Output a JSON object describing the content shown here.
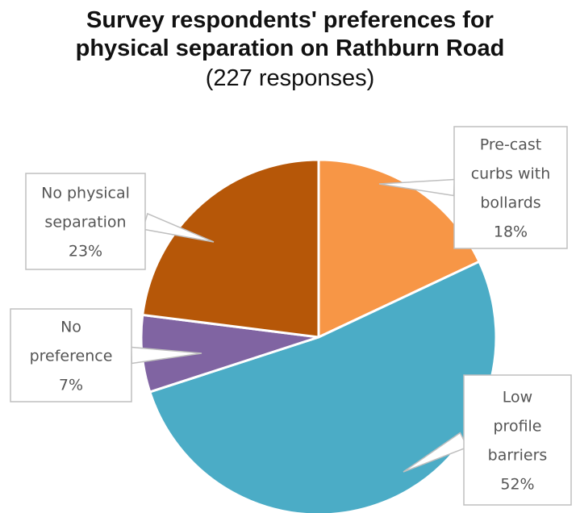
{
  "chart_data": {
    "type": "pie",
    "title_lines": [
      "Survey respondents' preferences for",
      "physical separation on Rathburn Road"
    ],
    "subtitle": "(227 responses)",
    "slices": [
      {
        "label_lines": [
          "Pre-cast",
          "curbs with",
          "bollards"
        ],
        "label": "Pre-cast curbs with bollards",
        "percent_text": "18%",
        "value": 18,
        "color": "#F79646"
      },
      {
        "label_lines": [
          "Low",
          "profile",
          "barriers"
        ],
        "label": "Low profile barriers",
        "percent_text": "52%",
        "value": 52,
        "color": "#4BACC6"
      },
      {
        "label_lines": [
          "No",
          "preference"
        ],
        "label": "No preference",
        "percent_text": "7%",
        "value": 7,
        "color": "#8064A2"
      },
      {
        "label_lines": [
          "No physical",
          "separation"
        ],
        "label": "No physical separation",
        "percent_text": "23%",
        "value": 23,
        "color": "#B65708"
      }
    ]
  }
}
